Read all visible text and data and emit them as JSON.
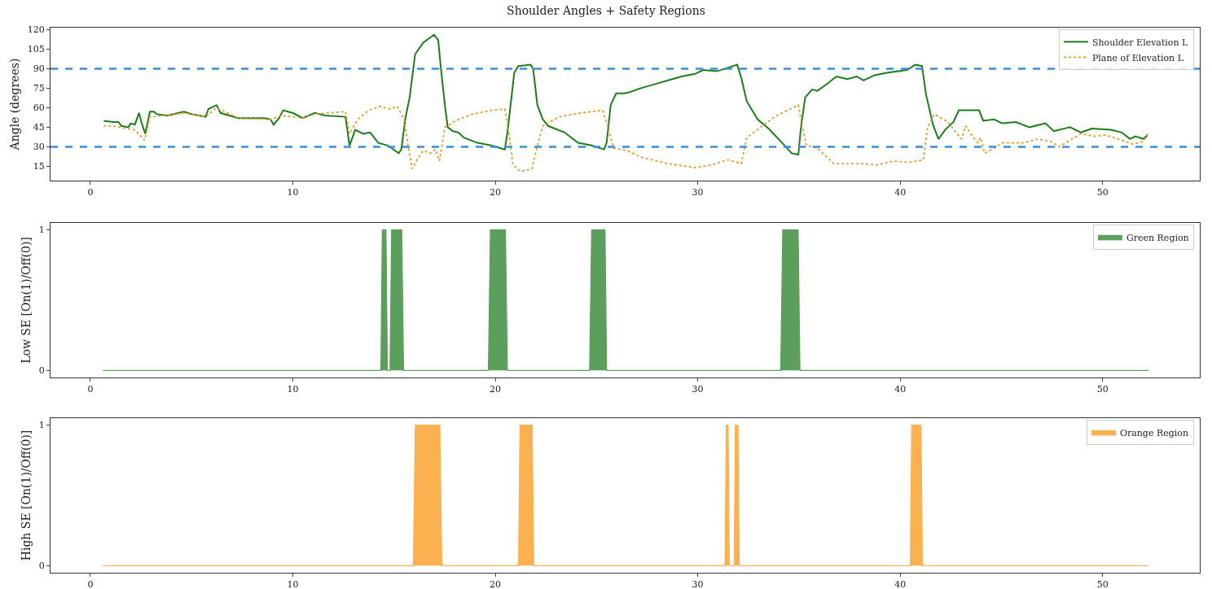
{
  "chart_data": [
    {
      "type": "line",
      "title": "Shoulder Angles + Safety Regions",
      "ylabel": "Angle (degrees)",
      "xlim": [
        -1.97,
        54.8
      ],
      "xticks": [
        0,
        10,
        20,
        30,
        40,
        50
      ],
      "ylim": [
        4,
        121.5
      ],
      "yticks": [
        15,
        30,
        45,
        60,
        75,
        90,
        105,
        120
      ],
      "grid": false,
      "legend": "top right",
      "series": [
        {
          "name": "Shoulder Elevation L",
          "color": "#1a7f1a",
          "line_style": "solid",
          "x": [
            0.66,
            1.13,
            1.39,
            1.53,
            1.87,
            2.0,
            2.2,
            2.4,
            2.54,
            2.71,
            2.94,
            3.14,
            3.28,
            3.81,
            4.62,
            5.02,
            5.69,
            5.83,
            6.23,
            6.43,
            7.3,
            8.65,
            8.9,
            9.05,
            9.32,
            9.52,
            9.99,
            10.5,
            11.07,
            11.6,
            12.6,
            12.8,
            13.08,
            13.48,
            13.82,
            14.22,
            14.69,
            15.23,
            15.36,
            15.56,
            15.77,
            16.04,
            16.44,
            16.97,
            17.18,
            17.31,
            17.51,
            17.65,
            17.91,
            18.18,
            18.45,
            19.12,
            19.8,
            20.47,
            20.6,
            20.94,
            21.14,
            21.74,
            21.87,
            22.08,
            22.35,
            22.61,
            23.42,
            24.09,
            24.76,
            25.37,
            25.5,
            25.7,
            25.97,
            26.38,
            26.65,
            27.19,
            27.86,
            28.53,
            29.2,
            29.87,
            30.27,
            30.95,
            31.35,
            31.95,
            32.15,
            32.42,
            32.96,
            33.5,
            34.17,
            34.64,
            34.97,
            35.1,
            35.31,
            35.65,
            35.91,
            36.45,
            36.85,
            37.39,
            37.86,
            38.19,
            38.73,
            39.4,
            40.34,
            40.75,
            41.08,
            41.28,
            41.62,
            41.89,
            42.22,
            42.63,
            42.9,
            43.43,
            43.9,
            44.1,
            44.64,
            45.04,
            45.71,
            46.38,
            47.18,
            47.59,
            48.39,
            48.93,
            49.47,
            50.41,
            50.95,
            51.35,
            51.62,
            52.02,
            52.22
          ],
          "values": [
            50,
            49,
            49,
            46,
            45,
            48,
            47,
            56,
            48,
            40,
            57,
            57,
            55,
            54,
            57,
            55,
            53,
            59,
            62,
            56,
            52,
            52,
            51,
            47,
            52,
            58,
            56,
            52,
            56,
            54,
            53,
            31,
            43,
            40,
            41,
            33,
            31,
            25,
            28,
            52,
            68,
            101,
            110,
            116,
            112,
            91,
            62,
            45,
            42,
            41,
            37,
            33,
            31,
            28,
            41,
            87,
            92,
            93,
            90,
            62,
            51,
            46,
            41,
            33,
            31,
            28,
            33,
            62,
            71,
            71,
            72,
            75,
            78,
            81,
            84,
            86,
            89,
            88,
            90,
            93,
            83,
            65,
            51,
            44,
            33,
            25,
            24,
            45,
            68,
            74,
            73,
            79,
            84,
            82,
            84,
            81,
            85,
            87,
            89,
            93,
            92,
            70,
            47,
            36,
            43,
            49,
            58,
            58,
            58,
            50,
            51,
            48,
            49,
            45,
            48,
            42,
            45,
            41,
            44,
            43,
            41,
            36,
            38,
            36,
            39
          ]
        },
        {
          "name": "Plane of Elevation L",
          "color": "#e89a2c",
          "line_style": "dotted",
          "x": [
            0.66,
            1.13,
            1.8,
            2.2,
            2.68,
            2.94,
            3.81,
            4.62,
            5.69,
            6.23,
            7.3,
            8.9,
            9.45,
            10.5,
            11.07,
            12.6,
            12.8,
            13.2,
            13.75,
            14.29,
            14.82,
            15.16,
            15.5,
            15.7,
            15.9,
            16.17,
            16.44,
            16.84,
            17.04,
            17.24,
            17.51,
            18.05,
            18.85,
            19.8,
            20.47,
            20.67,
            20.87,
            21.27,
            21.81,
            22.08,
            22.35,
            23.15,
            24.22,
            25.3,
            25.57,
            25.84,
            26.51,
            27.19,
            28.53,
            29.87,
            30.68,
            31.48,
            32.15,
            32.42,
            33.36,
            33.9,
            34.97,
            35.17,
            35.37,
            35.91,
            36.72,
            38.06,
            38.86,
            39.67,
            40.48,
            41.15,
            41.35,
            41.69,
            42.36,
            42.7,
            43.03,
            43.23,
            43.57,
            43.84,
            43.97,
            44.17,
            44.64,
            45.04,
            46.11,
            46.78,
            47.45,
            47.85,
            48.39,
            48.93,
            49.6,
            50.14,
            50.95,
            51.49,
            52.02,
            52.22
          ],
          "values": [
            46,
            46,
            44,
            43,
            35,
            53,
            54,
            56,
            53,
            60,
            52,
            51,
            54,
            52,
            55,
            57,
            40,
            51,
            58,
            61,
            59,
            61,
            51,
            30,
            13,
            21,
            27,
            25,
            28,
            19,
            45,
            50,
            55,
            58,
            59,
            41,
            16,
            11,
            13,
            31,
            46,
            53,
            56,
            58,
            45,
            29,
            27,
            22,
            17,
            14,
            16,
            20,
            17,
            37,
            48,
            54,
            62,
            45,
            31,
            29,
            17,
            17,
            16,
            19,
            18,
            20,
            45,
            55,
            49,
            42,
            36,
            46,
            38,
            33,
            37,
            25,
            29,
            33,
            33,
            36,
            34,
            30,
            35,
            40,
            38,
            39,
            35,
            32,
            34,
            40
          ]
        }
      ],
      "ref_lines": [
        {
          "axis": "y",
          "value": 90,
          "color": "#3b8fd6",
          "line_style": "dashed"
        },
        {
          "axis": "y",
          "value": 30,
          "color": "#3b8fd6",
          "line_style": "dashed"
        }
      ]
    },
    {
      "type": "area",
      "ylabel": "Low SE [On(1)/Off(0)]",
      "xlim": [
        -1.97,
        54.8
      ],
      "xticks": [
        0,
        10,
        20,
        30,
        40,
        50
      ],
      "ylim": [
        -0.05,
        1.05
      ],
      "yticks": [
        0,
        1
      ],
      "grid": false,
      "legend": "top right",
      "series": [
        {
          "name": "Green Region",
          "color": "#5c9e5c",
          "x": [
            0.62,
            14.35,
            14.42,
            14.6,
            14.67,
            14.8,
            14.88,
            15.38,
            15.47,
            19.66,
            19.76,
            20.5,
            20.6,
            24.66,
            24.76,
            25.42,
            25.5,
            34.1,
            34.2,
            34.96,
            35.05,
            52.26
          ],
          "values": [
            0,
            0,
            1,
            1,
            0,
            0,
            1,
            1,
            0,
            0,
            1,
            1,
            0,
            0,
            1,
            1,
            0,
            0,
            1,
            1,
            0,
            0
          ]
        }
      ]
    },
    {
      "type": "area",
      "ylabel": "High SE [On(1)/Off(0)]",
      "xlim": [
        -1.97,
        54.8
      ],
      "xticks": [
        0,
        10,
        20,
        30,
        40,
        50
      ],
      "ylim": [
        -0.05,
        1.05
      ],
      "yticks": [
        0,
        1
      ],
      "grid": false,
      "legend": "top right",
      "series": [
        {
          "name": "Orange Region",
          "color": "#fbb150",
          "x": [
            0.62,
            15.95,
            16.05,
            17.26,
            17.36,
            21.15,
            21.22,
            21.82,
            21.9,
            31.35,
            31.41,
            31.5,
            31.56,
            31.8,
            31.86,
            31.99,
            32.05,
            40.5,
            40.57,
            41.03,
            41.1,
            52.26
          ],
          "values": [
            0,
            0,
            1,
            1,
            0,
            0,
            1,
            1,
            0,
            0,
            1,
            1,
            0,
            0,
            1,
            1,
            0,
            0,
            1,
            1,
            0,
            0
          ]
        }
      ]
    }
  ]
}
